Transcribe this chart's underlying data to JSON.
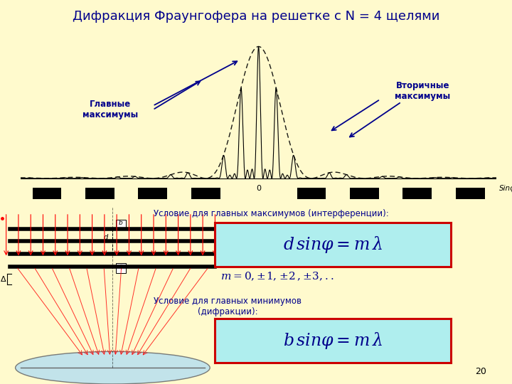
{
  "title": "Дифракция Фраунгофера на решетке с N = 4 щелями",
  "bg_color": "#FFFACD",
  "plot_bg_color": "#FFFFFF",
  "title_color": "#00008B",
  "N": 4,
  "d_over_b": 3,
  "annotation_glavnye": "Главные\nмаксимумы",
  "annotation_vtorichnye": "Вторичные\nмаксимумы",
  "condition1_text": "Условие для главных максимумов (интерференции):",
  "formula1": "$d\\,sin\\varphi = m\\,\\lambda$",
  "formula2": "$m = 0,\\!\\pm\\!1,\\!\\pm\\!2\\,,\\!\\pm\\!3,..$",
  "condition2_text": "Условие для главных минимумов\n(дифракции):",
  "formula3": "$b\\,sin\\varphi = m\\,\\lambda$",
  "page_num": "20",
  "sinphi_label": "Sinφ",
  "formula_box_color": "#AFEEEE",
  "formula_box_edge": "#CC0000",
  "formula_text_color": "#00008B",
  "annot_color": "#00008B"
}
